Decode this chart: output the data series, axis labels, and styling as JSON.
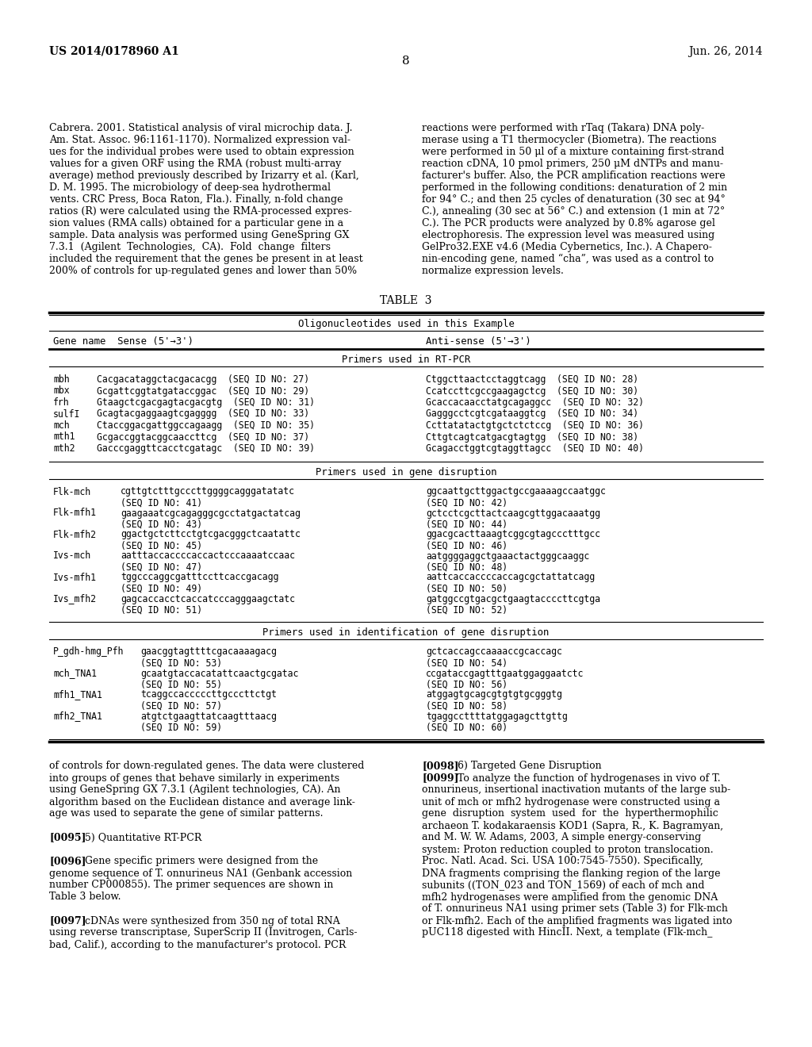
{
  "page_number": "8",
  "header_left": "US 2014/0178960 A1",
  "header_right": "Jun. 26, 2014",
  "background_color": "#ffffff",
  "text_color": "#000000",
  "left_col_text": [
    "Cabrera. 2001. Statistical analysis of viral microchip data. J.",
    "Am. Stat. Assoc. 96:1161-1170). Normalized expression val-",
    "ues for the individual probes were used to obtain expression",
    "values for a given ORF using the RMA (robust multi-array",
    "average) method previously described by Irizarry et al. (Karl,",
    "D. M. 1995. The microbiology of deep-sea hydrothermal",
    "vents. CRC Press, Boca Raton, Fla.). Finally, n-fold change",
    "ratios (R) were calculated using the RMA-processed expres-",
    "sion values (RMA calls) obtained for a particular gene in a",
    "sample. Data analysis was performed using GeneSpring GX",
    "7.3.1  (Agilent  Technologies,  CA).  Fold  change  filters",
    "included the requirement that the genes be present in at least",
    "200% of controls for up-regulated genes and lower than 50%"
  ],
  "right_col_text": [
    "reactions were performed with rTaq (Takara) DNA poly-",
    "merase using a T1 thermocycler (Biometra). The reactions",
    "were performed in 50 μl of a mixture containing first-strand",
    "reaction cDNA, 10 pmol primers, 250 μM dNTPs and manu-",
    "facturer's buffer. Also, the PCR amplification reactions were",
    "performed in the following conditions: denaturation of 2 min",
    "for 94° C.; and then 25 cycles of denaturation (30 sec at 94°",
    "C.), annealing (30 sec at 56° C.) and extension (1 min at 72°",
    "C.). The PCR products were analyzed by 0.8% agarose gel",
    "electrophoresis. The expression level was measured using",
    "GelPro32.EXE v4.6 (Media Cybernetics, Inc.). A Chapero-",
    "nin-encoding gene, named “cha”, was used as a control to",
    "normalize expression levels."
  ],
  "table_title": "TABLE  3",
  "table_header": "Oligonucleotides used in this Example",
  "col_header_left": "Gene name  Sense (5'→3')",
  "col_header_right": "Anti-sense (5'→3')",
  "section1_header": "Primers used in RT-PCR",
  "rt_pcr_rows": [
    [
      "mbh",
      "Cacgacataggctacgacacgg  (SEQ ID NO: 27)",
      "Ctggcttaactcctaggtcagg  (SEQ ID NO: 28)"
    ],
    [
      "mbx",
      "Gcgattcggtatgataccggac  (SEQ ID NO: 29)",
      "Ccatccttcgccgaagagctcg  (SEQ ID NO: 30)"
    ],
    [
      "frh",
      "Gtaagctcgacgagtacgacgtg  (SEQ ID NO: 31)",
      "Gcaccacaacctatgcagaggcc  (SEQ ID NO: 32)"
    ],
    [
      "sulfI",
      "Gcagtacgaggaagtcgagggg  (SEQ ID NO: 33)",
      "Gagggcctcgtcgataaggtcg  (SEQ ID NO: 34)"
    ],
    [
      "mch",
      "Ctaccggacgattggccagaagg  (SEQ ID NO: 35)",
      "Ccttatatactgtgctctctccg  (SEQ ID NO: 36)"
    ],
    [
      "mth1",
      "Gcgaccggtacggcaaccttcg  (SEQ ID NO: 37)",
      "Cttgtcagtcatgacgtagtgg  (SEQ ID NO: 38)"
    ],
    [
      "mth2",
      "Gacccgaggttcacctcgatagc  (SEQ ID NO: 39)",
      "Gcagacctggtcgtaggttagcc  (SEQ ID NO: 40)"
    ]
  ],
  "section2_header": "Primers used in gene disruption",
  "gene_dis_rows": [
    [
      "Flk-mch",
      "cgttgtctttgcccttggggcagggatatatc",
      "ggcaattgcttggactgccgaaaagccaatggc",
      "(SEQ ID NO: 41)",
      "(SEQ ID NO: 42)"
    ],
    [
      "Flk-mfh1",
      "gaagaaatcgcagagggcgcctatgactatcag",
      "gctcctcgcttactcaagcgttggacaaatgg",
      "(SEQ ID NO: 43)",
      "(SEQ ID NO: 44)"
    ],
    [
      "Flk-mfh2",
      "ggactgctcttcctgtcgacgggctcaatattc",
      "ggacgcacttaaagtcggcgtagccctttgcc",
      "(SEQ ID NO: 45)",
      "(SEQ ID NO: 46)"
    ],
    [
      "Ivs-mch",
      "aatttaccaccccaccactcccaaaatccaac",
      "aatggggaggctgaaactactgggcaaggc",
      "(SEQ ID NO: 47)",
      "(SEQ ID NO: 48)"
    ],
    [
      "Ivs-mfh1",
      "tggcccaggcgatttccttcaccgacagg",
      "aattcaccaccccaccagcgctattatcagg",
      "(SEQ ID NO: 49)",
      "(SEQ ID NO: 50)"
    ],
    [
      "Ivs_mfh2",
      "gagcaccacctcaccatcccagggaagctatc",
      "gatggccgtgacgctgaagtaccccttcgtga",
      "(SEQ ID NO: 51)",
      "(SEQ ID NO: 52)"
    ]
  ],
  "section3_header": "Primers used in identification of gene disruption",
  "id_dis_rows": [
    [
      "P_gdh-hmg_Pfh",
      "gaacggtagttttcgacaaaagacg",
      "gctcaccagccaaaaccgcaccagc",
      "(SEQ ID NO: 53)",
      "(SEQ ID NO: 54)"
    ],
    [
      "mch_TNA1",
      "gcaatgtaccacatattcaactgcgatac",
      "ccgataccgagtttgaatggaggaatctc",
      "(SEQ ID NO: 55)",
      "(SEQ ID NO: 56)"
    ],
    [
      "mfh1_TNA1",
      "tcaggccacccccttgcccttctgt",
      "atggagtgcagcgtgtgtgcgggtg",
      "(SEQ ID NO: 57)",
      "(SEQ ID NO: 58)"
    ],
    [
      "mfh2_TNA1",
      "atgtctgaagttatcaagtttaacg",
      "tgaggccttttatggagagcttgttg",
      "(SEQ ID NO: 59)",
      "(SEQ ID NO: 60)"
    ]
  ],
  "bottom_left_paras": [
    {
      "text": "of controls for down-regulated genes. The data were clustered into groups of genes that behave similarly in experiments using GeneSpring GX 7.3.1 (Agilent technologies, CA). An algorithm based on the Euclidean distance and average link-age was used to separate the gene of similar patterns.",
      "bold_prefix": ""
    },
    {
      "text": "5) Quantitative RT-PCR",
      "bold_prefix": "[0095]"
    },
    {
      "text": "Gene specific primers were designed from the genome sequence of T. onnurineus NA1 (Genbank accession number CP000855). The primer sequences are shown in Table 3 below.",
      "bold_prefix": "[0096]"
    },
    {
      "text": "cDNAs were synthesized from 350 ng of total RNA using reverse transcriptase, SuperScrip II (Invitrogen, Carls-bad, Calif.), according to the manufacturer's protocol. PCR",
      "bold_prefix": "[0097]"
    }
  ],
  "bottom_left_lines": [
    "of controls for down-regulated genes. The data were clustered",
    "into groups of genes that behave similarly in experiments",
    "using GeneSpring GX 7.3.1 (Agilent technologies, CA). An",
    "algorithm based on the Euclidean distance and average link-",
    "age was used to separate the gene of similar patterns.",
    "",
    "[0095]   5) Quantitative RT-PCR",
    "",
    "[0096]   Gene specific primers were designed from the",
    "genome sequence of T. onnurineus NA1 (Genbank accession",
    "number CP000855). The primer sequences are shown in",
    "Table 3 below.",
    "",
    "[0097]   cDNAs were synthesized from 350 ng of total RNA",
    "using reverse transcriptase, SuperScrip II (Invitrogen, Carls-",
    "bad, Calif.), according to the manufacturer's protocol. PCR"
  ],
  "bottom_right_lines": [
    "[0098]   6) Targeted Gene Disruption",
    "[0099]   To analyze the function of hydrogenases in vivo of T.",
    "onnurineus, insertional inactivation mutants of the large sub-",
    "unit of mch or mfh2 hydrogenase were constructed using a",
    "gene  disruption  system  used  for  the  hyperthermophilic",
    "archaeon T. kodakaraensis KOD1 (Sapra, R., K. Bagramyan,",
    "and M. W. W. Adams, 2003, A simple energy-conserving",
    "system: Proton reduction coupled to proton translocation.",
    "Proc. Natl. Acad. Sci. USA 100:7545-7550). Specifically,",
    "DNA fragments comprising the flanking region of the large",
    "subunits ((TON_023 and TON_1569) of each of mch and",
    "mfh2 hydrogenases were amplified from the genomic DNA",
    "of T. onnurineus NA1 using primer sets (Table 3) for Flk-mch",
    "or Flk-mfh2. Each of the amplified fragments was ligated into",
    "pUC118 digested with HincII. Next, a template (Flk-mch_"
  ]
}
